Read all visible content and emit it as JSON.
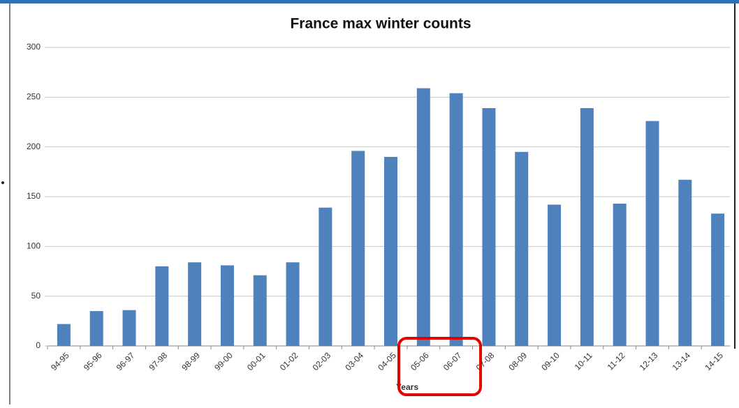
{
  "chart_data": {
    "type": "bar",
    "title": "France max winter counts",
    "x_label": "Years",
    "categories": [
      "94-95",
      "95-96",
      "96-97",
      "97-98",
      "98-99",
      "99-00",
      "00-01",
      "01-02",
      "02-03",
      "03-04",
      "04-05",
      "05-06",
      "06-07",
      "07-08",
      "08-09",
      "09-10",
      "10-11",
      "11-12",
      "12-13",
      "13-14",
      "14-15"
    ],
    "values": [
      22,
      35,
      36,
      80,
      84,
      81,
      71,
      84,
      139,
      196,
      190,
      259,
      254,
      239,
      195,
      142,
      239,
      143,
      226,
      167,
      133
    ],
    "color": "#4f81bd",
    "ylim": [
      0,
      300
    ],
    "yticks": [
      0,
      50,
      100,
      150,
      200,
      250,
      300
    ],
    "grid": true
  }
}
